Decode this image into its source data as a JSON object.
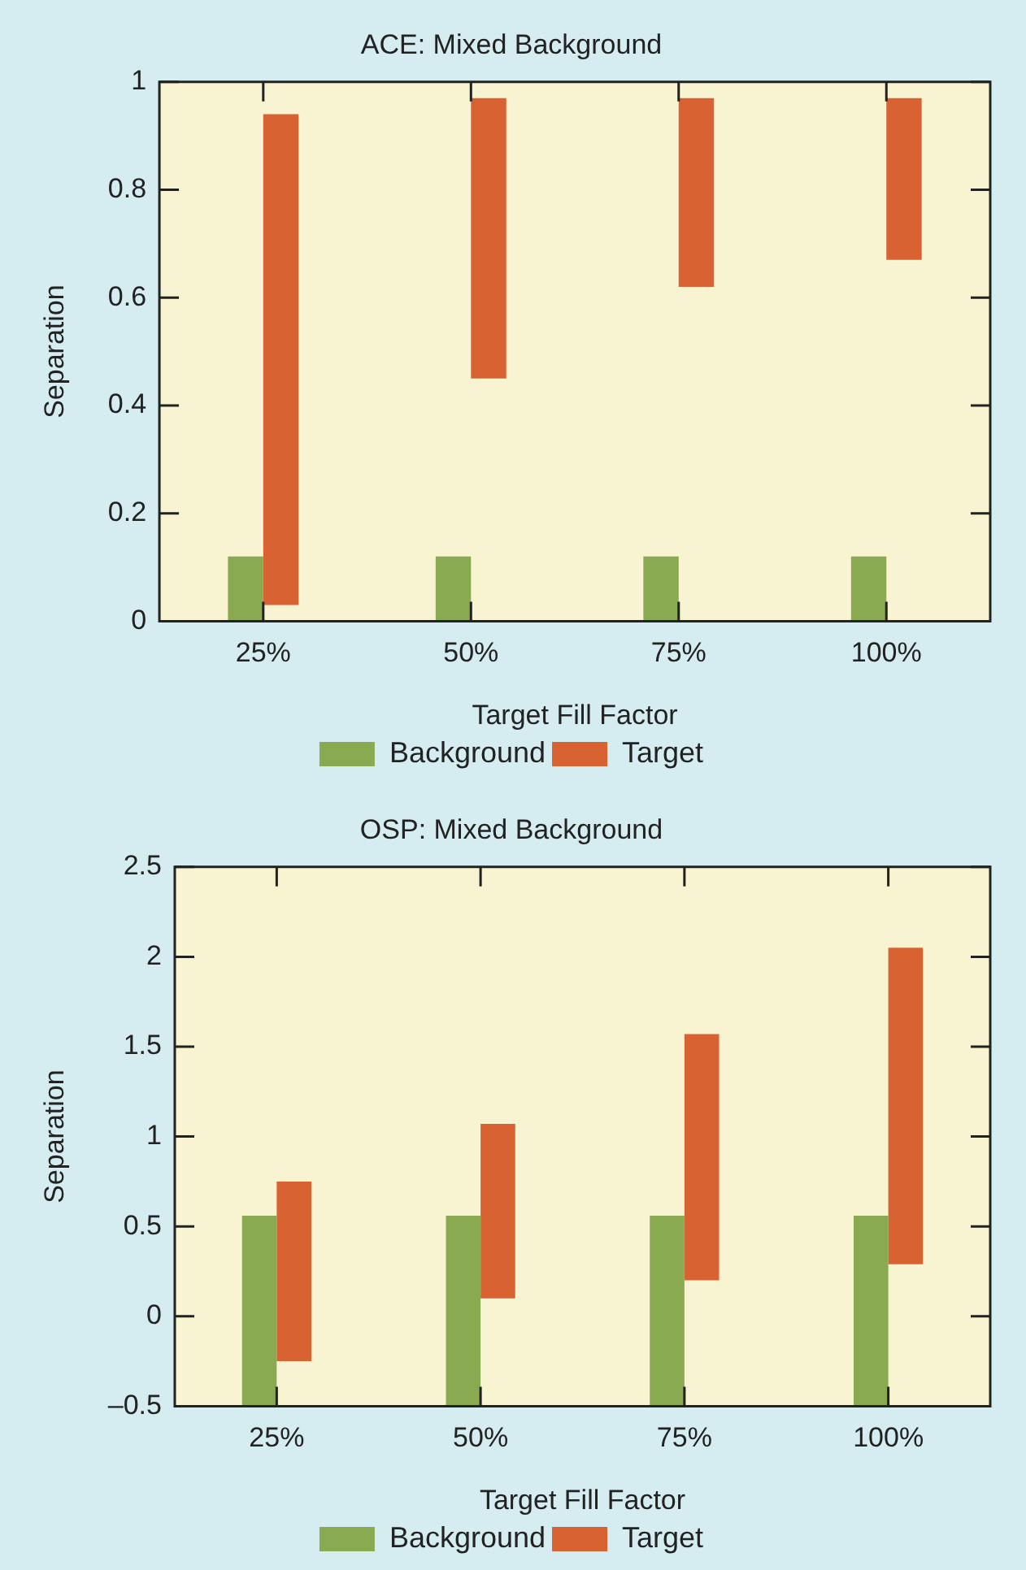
{
  "chart_data": [
    {
      "type": "bar",
      "title": "ACE: Mixed Background",
      "xlabel": "Target Fill Factor",
      "ylabel": "Separation",
      "categories": [
        "25%",
        "50%",
        "75%",
        "100%"
      ],
      "series": [
        {
          "name": "Background",
          "color": "#8aaa52",
          "base": [
            0,
            0,
            0,
            0
          ],
          "values": [
            0.12,
            0.12,
            0.12,
            0.12
          ]
        },
        {
          "name": "Target",
          "color": "#d96232",
          "base": [
            0.03,
            0.45,
            0.62,
            0.67
          ],
          "values": [
            0.91,
            0.52,
            0.35,
            0.3
          ]
        }
      ],
      "ylim": [
        0,
        1
      ],
      "yticks": [
        0,
        0.2,
        0.4,
        0.6,
        0.8,
        1
      ],
      "grid": false,
      "legend": "bottom"
    },
    {
      "type": "bar",
      "title": "OSP: Mixed Background",
      "xlabel": "Target Fill Factor",
      "ylabel": "Separation",
      "categories": [
        "25%",
        "50%",
        "75%",
        "100%"
      ],
      "series": [
        {
          "name": "Background",
          "color": "#8aaa52",
          "base": [
            -0.5,
            -0.5,
            -0.5,
            -0.5
          ],
          "values": [
            1.06,
            1.06,
            1.06,
            1.06
          ]
        },
        {
          "name": "Target",
          "color": "#d96232",
          "base": [
            -0.25,
            0.1,
            0.2,
            0.29
          ],
          "values": [
            1.0,
            0.97,
            1.37,
            1.76
          ]
        }
      ],
      "ylim": [
        -0.5,
        2.5
      ],
      "yticks": [
        {
          "value": -0.5,
          "label": "–0.5"
        },
        0,
        0.5,
        1,
        1.5,
        2,
        2.5
      ],
      "grid": false,
      "legend": "bottom"
    }
  ]
}
